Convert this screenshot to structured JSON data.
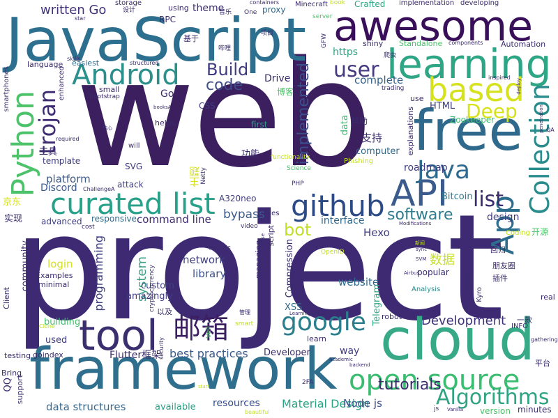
{
  "words": [
    {
      "text": "web",
      "color": "#3b1f5f"
    },
    {
      "text": "project",
      "color": "#3e2a73"
    },
    {
      "text": "JavaScript",
      "color": "#2c6f8e"
    },
    {
      "text": "awesome",
      "color": "#3a0f5a"
    },
    {
      "text": "free",
      "color": "#2f6a8d"
    },
    {
      "text": "cloud",
      "color": "#37a987"
    },
    {
      "text": "framework",
      "color": "#2f6f8d"
    },
    {
      "text": "learning",
      "color": "#2ea584"
    },
    {
      "text": "Android",
      "color": "#2b8f8b"
    },
    {
      "text": "Python",
      "color": "#4cc26a"
    },
    {
      "text": "based",
      "color": "#d6e120"
    },
    {
      "text": "github",
      "color": "#2b4a86"
    },
    {
      "text": "API",
      "color": "#3a5b8c"
    },
    {
      "text": "curated list",
      "color": "#27a18a"
    },
    {
      "text": "open source",
      "color": "#3bbd71"
    },
    {
      "text": "tool",
      "color": "#3b2f6f"
    },
    {
      "text": "google",
      "color": "#2b7f8d"
    },
    {
      "text": "Collection",
      "color": "#2a8c8c"
    },
    {
      "text": "App",
      "color": "#2d6e8e"
    },
    {
      "text": "Java",
      "color": "#2f6b8e"
    },
    {
      "text": "邮箱",
      "color": "#3c1f60"
    },
    {
      "text": "Algorithms",
      "color": "#2fa483"
    },
    {
      "text": "trojan",
      "color": "#3e2c72"
    },
    {
      "text": "Deep",
      "color": "#d8e219"
    },
    {
      "text": "user",
      "color": "#443a80"
    },
    {
      "text": "list",
      "color": "#3a2b6c"
    },
    {
      "text": "Build",
      "color": "#3f3b7f"
    },
    {
      "text": "written Go",
      "color": "#44337a"
    },
    {
      "text": "code",
      "color": "#3f4c89"
    },
    {
      "text": "bot",
      "color": "#c0df25"
    },
    {
      "text": "software",
      "color": "#2e7b8d"
    },
    {
      "text": "implemented",
      "color": "#3b4f8a"
    },
    {
      "text": "complete",
      "color": "#33638d"
    },
    {
      "text": "Development",
      "color": "#3f327b"
    },
    {
      "text": "tutorials",
      "color": "#3b2c6c"
    },
    {
      "text": "resources",
      "color": "#344a89"
    },
    {
      "text": "Material Design",
      "color": "#29a585"
    },
    {
      "text": "command line",
      "color": "#3e2b70"
    },
    {
      "text": "bypass",
      "color": "#3a5a8c"
    },
    {
      "text": "Node js",
      "color": "#3c4f8a"
    },
    {
      "text": "data structures",
      "color": "#3c6a8e"
    },
    {
      "text": "best practices",
      "color": "#3a5b8c"
    },
    {
      "text": "website",
      "color": "#2f6b8e"
    },
    {
      "text": "system",
      "color": "#3f9f85"
    },
    {
      "text": "programming",
      "color": "#3e3e80"
    },
    {
      "text": "network",
      "color": "#3f3f80"
    },
    {
      "text": "library",
      "color": "#3b4f8a"
    },
    {
      "text": "数据",
      "color": "#c7e02a"
    },
    {
      "text": "支持",
      "color": "#3c2f70"
    },
    {
      "text": "platform",
      "color": "#3a5b8c"
    },
    {
      "text": "Discord",
      "color": "#3a5b8c"
    },
    {
      "text": "Bitcoin",
      "color": "#2f7a8d"
    },
    {
      "text": "roadmap",
      "color": "#3e3d7f"
    },
    {
      "text": "design",
      "color": "#3f3b7f"
    },
    {
      "text": "Hexo",
      "color": "#3f3b7f"
    },
    {
      "text": "interface",
      "color": "#2f6a8d"
    },
    {
      "text": "HTML",
      "color": "#3f3b7f"
    },
    {
      "text": "Zookeeper",
      "color": "#3fbc72"
    },
    {
      "text": "Drive",
      "color": "#3a2b6c"
    },
    {
      "text": "https",
      "color": "#2fa483"
    },
    {
      "text": "data",
      "color": "#3fbc72"
    },
    {
      "text": "computer",
      "color": "#2f6a8d"
    },
    {
      "text": "login",
      "color": "#d6e120"
    },
    {
      "text": "custom",
      "color": "#3e3e80"
    },
    {
      "text": "building",
      "color": "#43bf6e"
    },
    {
      "text": "used",
      "color": "#3f3b7f"
    },
    {
      "text": "Flutter框架",
      "color": "#3b2c6c"
    },
    {
      "text": "amazingly",
      "color": "#3f3b7f"
    },
    {
      "text": "Developer",
      "color": "#3a2b6c"
    },
    {
      "text": "available",
      "color": "#2f9f86"
    },
    {
      "text": "way",
      "color": "#3f3b7f"
    },
    {
      "text": "popular",
      "color": "#3a2b6c"
    },
    {
      "text": "Analysis",
      "color": "#2a8c8c"
    },
    {
      "text": "Compression",
      "color": "#3a2b6c"
    },
    {
      "text": "XSS",
      "color": "#2f6a8d"
    },
    {
      "text": "Telegram",
      "color": "#2fa483"
    },
    {
      "text": "robot",
      "color": "#3a2b6c"
    },
    {
      "text": "learn",
      "color": "#3a2b6c"
    },
    {
      "text": "minutes",
      "color": "#3a2b6c"
    },
    {
      "text": "version",
      "color": "#4cc26a"
    },
    {
      "text": "real",
      "color": "#3a2b6c"
    },
    {
      "text": "Examples",
      "color": "#3a2b6c"
    },
    {
      "text": "minimal",
      "color": "#3a2b6c"
    },
    {
      "text": "advanced",
      "color": "#3e3e80"
    },
    {
      "text": "responsive",
      "color": "#2f6a8d"
    },
    {
      "text": "community",
      "color": "#3a2b6c"
    },
    {
      "text": "实现",
      "color": "#3a2b6c"
    },
    {
      "text": "京东",
      "color": "#d6e120"
    },
    {
      "text": "工具",
      "color": "#3a2b6c"
    },
    {
      "text": "template",
      "color": "#3f3b7f"
    },
    {
      "text": "SVG",
      "color": "#3f3b7f"
    },
    {
      "text": "attack",
      "color": "#3f3b7f"
    },
    {
      "text": "主题",
      "color": "#d6e120"
    },
    {
      "text": "功能",
      "color": "#3a2b6c"
    },
    {
      "text": "A320neo",
      "color": "#3f3b7f"
    },
    {
      "text": "帮助",
      "color": "#3a2b6c"
    },
    {
      "text": "first",
      "color": "#2f9f86"
    },
    {
      "text": "博客",
      "color": "#4cc26a"
    },
    {
      "text": "explanations",
      "color": "#3a2b6c"
    },
    {
      "text": "CSS",
      "color": "#3f3b7f"
    },
    {
      "text": "small",
      "color": "#3a2b6c"
    },
    {
      "text": "Go",
      "color": "#3a2b6c"
    },
    {
      "text": "RPC",
      "color": "#3a2b6c"
    },
    {
      "text": "theme",
      "color": "#3a2b6c"
    },
    {
      "text": "using",
      "color": "#3a2b6c"
    },
    {
      "text": "proxy",
      "color": "#2f6a8d"
    },
    {
      "text": "Crafted",
      "color": "#2fa483"
    },
    {
      "text": "Minecraft",
      "color": "#3a2b6c"
    },
    {
      "text": "implementation",
      "color": "#3a2b6c"
    },
    {
      "text": "developing",
      "color": "#3a2b6c"
    },
    {
      "text": "shiny",
      "color": "#3a2b6c"
    },
    {
      "text": "Standalone",
      "color": "#4cc26a"
    },
    {
      "text": "components",
      "color": "#3a2b6c"
    },
    {
      "text": "Automation",
      "color": "#3a2b6c"
    },
    {
      "text": "基于",
      "color": "#3a2b6c"
    },
    {
      "text": "language",
      "color": "#3a2b6c"
    },
    {
      "text": "easiest",
      "color": "#2f6a8d"
    },
    {
      "text": "structured",
      "color": "#3a2b6c"
    },
    {
      "text": "smartphones",
      "color": "#3a2b6c"
    },
    {
      "text": "enhanced",
      "color": "#3a2b6c"
    },
    {
      "text": "Bootstrap",
      "color": "#3a2b6c"
    },
    {
      "text": "use",
      "color": "#3a2b6c"
    },
    {
      "text": "trading",
      "color": "#3a2b6c"
    },
    {
      "text": "helps",
      "color": "#3a2b6c"
    },
    {
      "text": "will",
      "color": "#3a2b6c"
    },
    {
      "text": "required",
      "color": "#3a2b6c"
    },
    {
      "text": "functionality",
      "color": "#c0df25"
    },
    {
      "text": "Science",
      "color": "#4cc26a"
    },
    {
      "text": "Phishing",
      "color": "#c0df25"
    },
    {
      "text": "PHP",
      "color": "#3a2b6c"
    },
    {
      "text": "Netty",
      "color": "#3a2b6c"
    },
    {
      "text": "files",
      "color": "#3a2b6c"
    },
    {
      "text": "video",
      "color": "#3a2b6c"
    },
    {
      "text": "cost",
      "color": "#3a2b6c"
    },
    {
      "text": "ChallengeA",
      "color": "#3a2b6c"
    },
    {
      "text": "Coding",
      "color": "#c0df25"
    },
    {
      "text": "开源",
      "color": "#4cc26a"
    },
    {
      "text": "回归",
      "color": "#3a2b6c"
    },
    {
      "text": "朋友圈",
      "color": "#3a2b6c"
    },
    {
      "text": "插件",
      "color": "#3a2b6c"
    },
    {
      "text": "网易",
      "color": "#3a2b6c"
    },
    {
      "text": "Kyro",
      "color": "#3a2b6c"
    },
    {
      "text": "一款",
      "color": "#3a2b6c"
    },
    {
      "text": "INFO",
      "color": "#3a2b6c"
    },
    {
      "text": "gathering",
      "color": "#3a2b6c"
    },
    {
      "text": "平台",
      "color": "#3a2b6c"
    },
    {
      "text": "Client",
      "color": "#3a2b6c"
    },
    {
      "text": "testing",
      "color": "#3a2b6c"
    },
    {
      "text": "goindex",
      "color": "#3a2b6c"
    },
    {
      "text": "Bring",
      "color": "#3a2b6c"
    },
    {
      "text": "QQ",
      "color": "#3a2b6c"
    },
    {
      "text": "support",
      "color": "#3a2b6c"
    },
    {
      "text": "storage",
      "color": "#3a2b6c"
    },
    {
      "text": "设计",
      "color": "#3a2b6c"
    },
    {
      "text": "音乐",
      "color": "#3a2b6c"
    },
    {
      "text": "One",
      "color": "#3a2b6c"
    },
    {
      "text": "book",
      "color": "#c0df25"
    },
    {
      "text": "server",
      "color": "#4cc26a"
    },
    {
      "text": "containers",
      "color": "#3a2b6c"
    },
    {
      "text": "star",
      "color": "#3a2b6c"
    },
    {
      "text": "项目",
      "color": "#3a2b6c"
    },
    {
      "text": "哔哩",
      "color": "#3a2b6c"
    },
    {
      "text": "爬虫",
      "color": "#3a2b6c"
    },
    {
      "text": "skills",
      "color": "#3a2b6c"
    },
    {
      "text": "GFW",
      "color": "#3a2b6c"
    },
    {
      "text": "inspired",
      "color": "#3a2b6c"
    },
    {
      "text": "deploy",
      "color": "#3a2b6c"
    },
    {
      "text": "penetration",
      "color": "#3a2b6c"
    },
    {
      "text": "QA",
      "color": "#3a2b6c"
    },
    {
      "text": "Modifications",
      "color": "#3a2b6c"
    },
    {
      "text": "新闻",
      "color": "#c0df25"
    },
    {
      "text": "sync",
      "color": "#3a2b6c"
    },
    {
      "text": "SVM",
      "color": "#3a2b6c"
    },
    {
      "text": "Airbus",
      "color": "#3a2b6c"
    },
    {
      "text": "OpenID",
      "color": "#c0df25"
    },
    {
      "text": "Veil",
      "color": "#4cc26a"
    },
    {
      "text": "script",
      "color": "#3a2b6c"
    },
    {
      "text": "managing",
      "color": "#3a2b6c"
    },
    {
      "text": "cryptocurrency",
      "color": "#3a2b6c"
    },
    {
      "text": "generate",
      "color": "#3a2b6c"
    },
    {
      "text": "close",
      "color": "#3a2b6c"
    },
    {
      "text": "以及",
      "color": "#3a2b6c"
    },
    {
      "text": "管理",
      "color": "#3a2b6c"
    },
    {
      "text": "smart",
      "color": "#c0df25"
    },
    {
      "text": "LearningLearn",
      "color": "#3a2b6c"
    },
    {
      "text": "Clone",
      "color": "#c0df25"
    },
    {
      "text": "security",
      "color": "#3a2b6c"
    },
    {
      "text": "academic",
      "color": "#3a2b6c"
    },
    {
      "text": "backend",
      "color": "#3a2b6c"
    },
    {
      "text": "2FA",
      "color": "#3a2b6c"
    },
    {
      "text": "start",
      "color": "#c0df25"
    },
    {
      "text": "beautiful",
      "color": "#c0df25"
    },
    {
      "text": "js",
      "color": "#3a2b6c"
    },
    {
      "text": "Vanilla",
      "color": "#3a2b6c"
    },
    {
      "text": "booksA",
      "color": "#3a2b6c"
    },
    {
      "text": "核心",
      "color": "#3a2b6c"
    }
  ]
}
